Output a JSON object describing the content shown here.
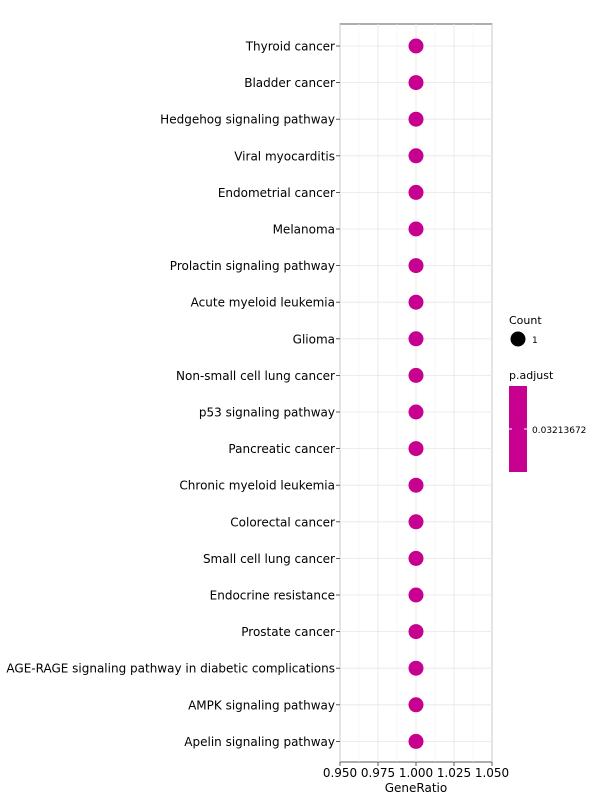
{
  "chart_data": {
    "type": "scatter",
    "title": "",
    "xlabel": "GeneRatio",
    "ylabel": "",
    "xlim": [
      0.95,
      1.05
    ],
    "x_ticks": [
      "0.950",
      "0.975",
      "1.000",
      "1.025",
      "1.050"
    ],
    "x_tick_values": [
      0.95,
      0.975,
      1.0,
      1.025,
      1.05
    ],
    "grid": true,
    "categories": [
      "Thyroid cancer",
      "Bladder cancer",
      "Hedgehog signaling pathway",
      "Viral myocarditis",
      "Endometrial cancer",
      "Melanoma",
      "Prolactin signaling pathway",
      "Acute myeloid leukemia",
      "Glioma",
      "Non-small cell lung cancer",
      "p53 signaling pathway",
      "Pancreatic cancer",
      "Chronic myeloid leukemia",
      "Colorectal cancer",
      "Small cell lung cancer",
      "Endocrine resistance",
      "Prostate cancer",
      "AGE-RAGE signaling pathway in diabetic complications",
      "AMPK signaling pathway",
      "Apelin signaling pathway"
    ],
    "x": [
      1.0,
      1.0,
      1.0,
      1.0,
      1.0,
      1.0,
      1.0,
      1.0,
      1.0,
      1.0,
      1.0,
      1.0,
      1.0,
      1.0,
      1.0,
      1.0,
      1.0,
      1.0,
      1.0,
      1.0
    ],
    "count": [
      1,
      1,
      1,
      1,
      1,
      1,
      1,
      1,
      1,
      1,
      1,
      1,
      1,
      1,
      1,
      1,
      1,
      1,
      1,
      1
    ],
    "point_color": "#C8008F",
    "legend": {
      "placement": "right",
      "size_title": "Count",
      "size_label": "1",
      "color_title": "p.adjust",
      "color_label": "0.03213672",
      "color_value": "#C8008F"
    }
  }
}
